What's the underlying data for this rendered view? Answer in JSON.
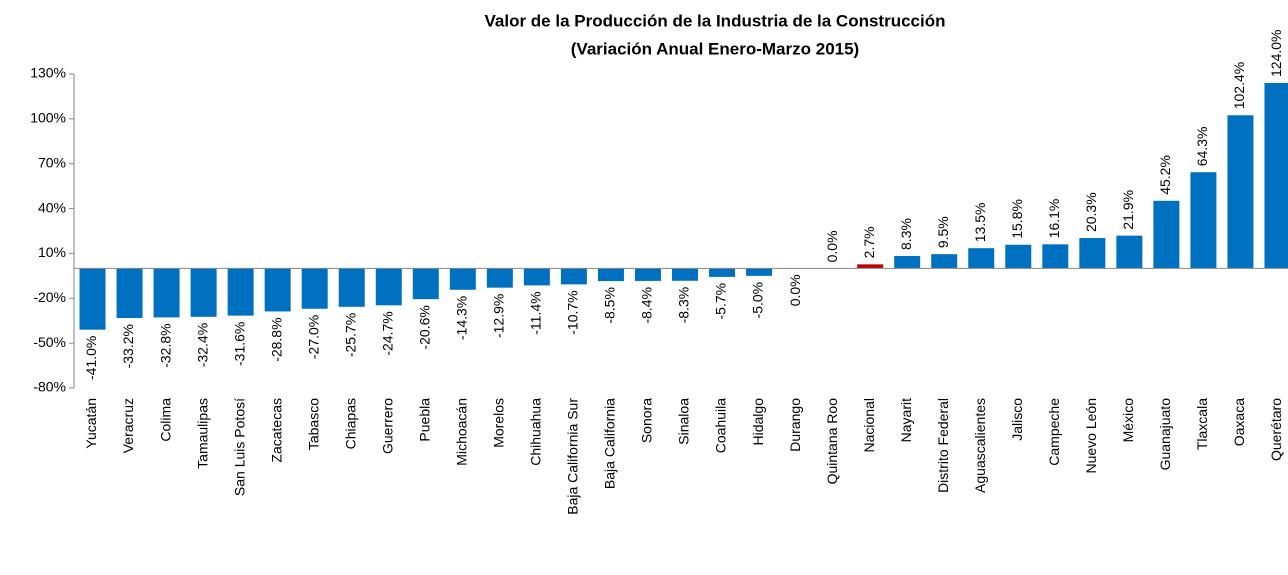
{
  "chart_data": {
    "type": "bar",
    "title": [
      "Valor de la Producción de la Industria de la Construcción",
      "(Variación Anual Enero-Marzo 2015)"
    ],
    "categories": [
      "Yucatán",
      "Veracruz",
      "Colima",
      "Tamaulipas",
      "San Luis Potosí",
      "Zacatecas",
      "Tabasco",
      "Chiapas",
      "Guerrero",
      "Puebla",
      "Michoacán",
      "Morelos",
      "Chihuahua",
      "Baja California Sur",
      "Baja California",
      "Sonora",
      "Sinaloa",
      "Coahuila",
      "Hidalgo",
      "Durango",
      "Quintana Roo",
      "Nacional",
      "Nayarit",
      "Distrito Federal",
      "Aguascalientes",
      "Jalisco",
      "Campeche",
      "Nuevo León",
      "México",
      "Guanajuato",
      "Tlaxcala",
      "Oaxaca",
      "Querétaro"
    ],
    "values": [
      -41.0,
      -33.2,
      -32.8,
      -32.4,
      -31.6,
      -28.8,
      -27.0,
      -25.7,
      -24.7,
      -20.6,
      -14.3,
      -12.9,
      -11.4,
      -10.7,
      -8.5,
      -8.4,
      -8.3,
      -5.7,
      -5.0,
      0.0,
      0.0,
      2.7,
      8.3,
      9.5,
      13.5,
      15.8,
      16.1,
      20.3,
      21.9,
      45.2,
      64.3,
      102.4,
      124.0
    ],
    "value_labels": [
      "-41.0%",
      "-33.2%",
      "-32.8%",
      "-32.4%",
      "-31.6%",
      "-28.8%",
      "-27.0%",
      "-25.7%",
      "-24.7%",
      "-20.6%",
      "-14.3%",
      "-12.9%",
      "-11.4%",
      "-10.7%",
      "-8.5%",
      "-8.4%",
      "-8.3%",
      "-5.7%",
      "-5.0%",
      "0.0%",
      "0.0%",
      "2.7%",
      "8.3%",
      "9.5%",
      "13.5%",
      "15.8%",
      "16.1%",
      "20.3%",
      "21.9%",
      "45.2%",
      "64.3%",
      "102.4%",
      "124.0%"
    ],
    "colors": [
      "#0070c0",
      "#0070c0",
      "#0070c0",
      "#0070c0",
      "#0070c0",
      "#0070c0",
      "#0070c0",
      "#0070c0",
      "#0070c0",
      "#0070c0",
      "#0070c0",
      "#0070c0",
      "#0070c0",
      "#0070c0",
      "#0070c0",
      "#0070c0",
      "#0070c0",
      "#0070c0",
      "#0070c0",
      "#0070c0",
      "#0070c0",
      "#c00000",
      "#0070c0",
      "#0070c0",
      "#0070c0",
      "#0070c0",
      "#0070c0",
      "#0070c0",
      "#0070c0",
      "#0070c0",
      "#0070c0",
      "#0070c0",
      "#0070c0"
    ],
    "ylim": [
      -80,
      130
    ],
    "yticks": [
      {
        "value": -80,
        "label": "-80%"
      },
      {
        "value": -50,
        "label": "-50%"
      },
      {
        "value": -20,
        "label": "-20%"
      },
      {
        "value": 10,
        "label": "10%"
      },
      {
        "value": 40,
        "label": "40%"
      },
      {
        "value": 70,
        "label": "70%"
      },
      {
        "value": 100,
        "label": "100%"
      },
      {
        "value": 130,
        "label": "130%"
      }
    ]
  }
}
